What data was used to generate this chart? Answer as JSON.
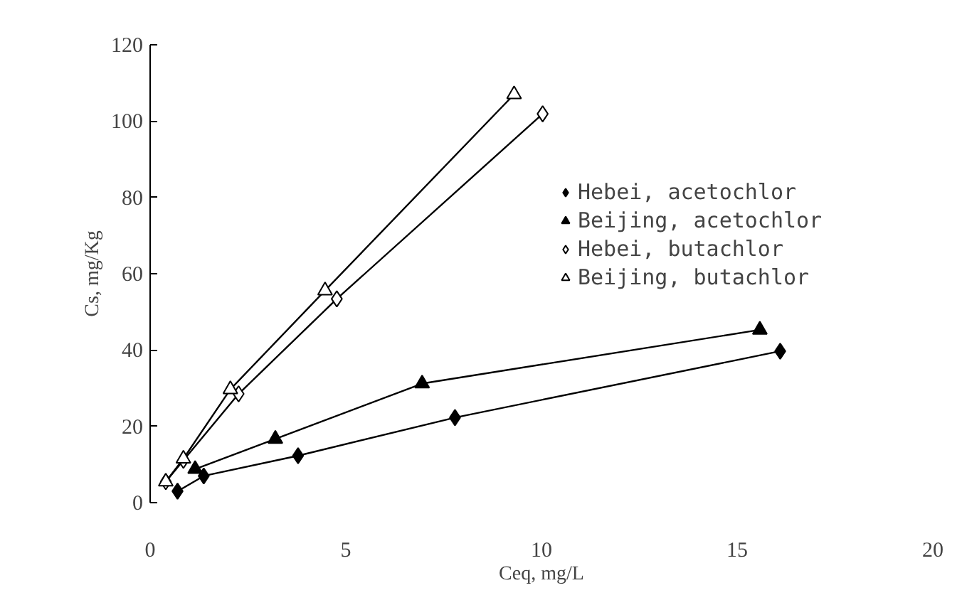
{
  "chart_data": {
    "type": "line",
    "xlabel": "Ceq, mg/L",
    "ylabel": "Cs, mg/Kg",
    "xlim": [
      0,
      20
    ],
    "ylim": [
      0,
      120
    ],
    "xticks": [
      0,
      5,
      10,
      15,
      20
    ],
    "yticks": [
      0,
      20,
      40,
      60,
      80,
      100,
      120
    ],
    "grid": false,
    "legend": "top right",
    "line_style": "solid",
    "series": [
      {
        "name": "Hebei, acetochlor",
        "color": "#000000",
        "marker": "diamond",
        "x": [
          0.7,
          1.37,
          3.78,
          7.79,
          16.1
        ],
        "values": [
          3.0,
          7.0,
          12.3,
          22.3,
          39.7
        ]
      },
      {
        "name": "Beijing, acetochlor",
        "color": "#000000",
        "marker": "triangle",
        "x": [
          1.15,
          3.2,
          6.95,
          15.58
        ],
        "values": [
          8.8,
          16.7,
          31.2,
          45.3
        ]
      },
      {
        "name": "Hebei, butachlor",
        "color": "#ffffff",
        "marker": "diamond",
        "x": [
          0.4,
          0.85,
          2.26,
          4.77,
          10.03
        ],
        "values": [
          5.5,
          11.1,
          28.5,
          53.4,
          101.9
        ]
      },
      {
        "name": "Beijing, butachlor",
        "color": "#ffffff",
        "marker": "triangle",
        "x": [
          0.4,
          0.85,
          2.05,
          4.47,
          9.3
        ],
        "values": [
          5.5,
          11.5,
          29.7,
          55.6,
          107
        ]
      }
    ]
  }
}
